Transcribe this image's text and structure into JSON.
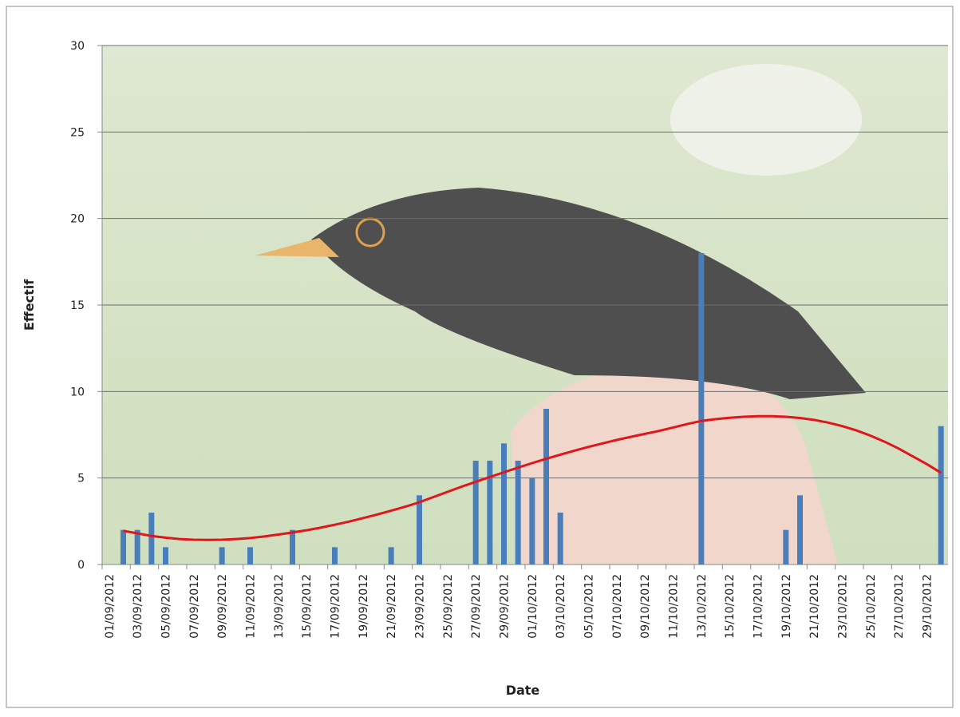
{
  "chart_data": {
    "type": "bar",
    "x_label": "Date",
    "y_label": "Effectif",
    "categories": [
      "01/09/2012",
      null,
      "03/09/2012",
      null,
      "05/09/2012",
      null,
      "07/09/2012",
      null,
      "09/09/2012",
      null,
      "11/09/2012",
      null,
      "13/09/2012",
      null,
      "15/09/2012",
      null,
      "17/09/2012",
      null,
      "19/09/2012",
      null,
      "21/09/2012",
      null,
      "23/09/2012",
      null,
      "25/09/2012",
      null,
      "27/09/2012",
      null,
      "29/09/2012",
      null,
      "01/10/2012",
      null,
      "03/10/2012",
      null,
      "05/10/2012",
      null,
      "07/10/2012",
      null,
      "09/10/2012",
      null,
      "11/10/2012",
      null,
      "13/10/2012",
      null,
      "15/10/2012",
      null,
      "17/10/2012",
      null,
      "19/10/2012",
      null,
      "21/10/2012",
      null,
      "23/10/2012",
      null,
      "25/10/2012",
      null,
      "27/10/2012",
      null,
      "29/10/2012",
      null
    ],
    "series": [
      {
        "type": "bar",
        "color": "#4a7ebb",
        "values": [
          0,
          2,
          2,
          3,
          1,
          0,
          0,
          0,
          1,
          0,
          1,
          0,
          0,
          2,
          0,
          0,
          1,
          0,
          0,
          0,
          1,
          0,
          4,
          0,
          0,
          0,
          6,
          6,
          7,
          6,
          5,
          9,
          3,
          0,
          0,
          0,
          0,
          0,
          0,
          0,
          0,
          0,
          18,
          0,
          0,
          0,
          0,
          0,
          2,
          4,
          0,
          0,
          0,
          0,
          0,
          0,
          0,
          0,
          0,
          8
        ]
      },
      {
        "type": "line",
        "color": "#e0161b",
        "values": [
          null,
          1.95,
          1.8,
          1.65,
          1.55,
          1.47,
          1.43,
          1.42,
          1.43,
          1.47,
          1.53,
          1.62,
          1.73,
          1.85,
          1.98,
          2.13,
          2.3,
          2.48,
          2.68,
          2.89,
          3.11,
          3.34,
          3.6,
          3.9,
          4.2,
          4.5,
          4.78,
          5.06,
          5.33,
          5.6,
          5.86,
          6.11,
          6.35,
          6.58,
          6.8,
          7.0,
          7.2,
          7.38,
          7.55,
          7.72,
          7.92,
          8.12,
          8.3,
          8.4,
          8.48,
          8.54,
          8.57,
          8.57,
          8.54,
          8.47,
          8.36,
          8.2,
          8.0,
          7.75,
          7.45,
          7.1,
          6.7,
          6.25,
          5.8,
          5.3
        ]
      }
    ],
    "ylim": [
      0,
      30
    ],
    "yticks": [
      0,
      5,
      10,
      15,
      20,
      25,
      30
    ],
    "grid": true
  }
}
